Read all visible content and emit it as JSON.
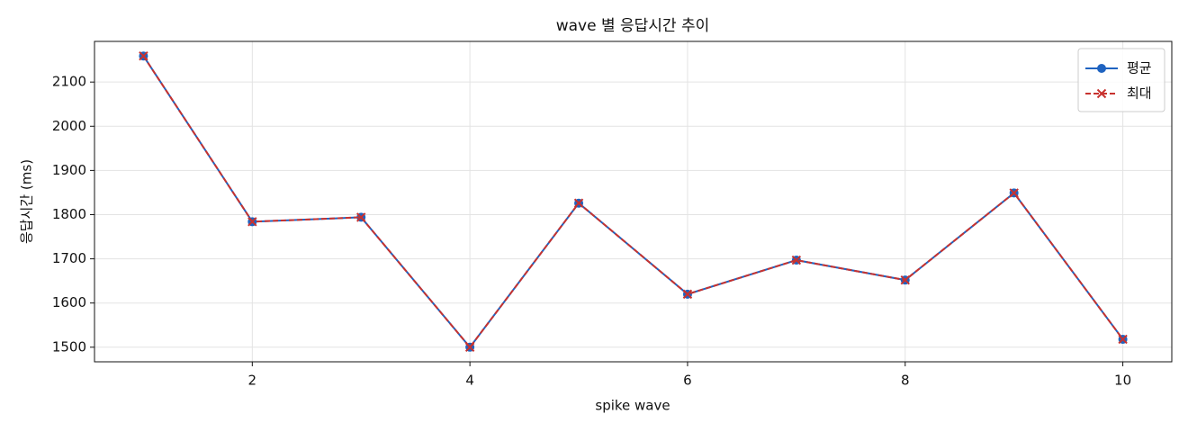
{
  "chart_data": {
    "type": "line",
    "title": "wave 별 응답시간 추이",
    "x_label": "spike wave",
    "y_label": "응답시간 (ms)",
    "x": [
      1,
      2,
      3,
      4,
      5,
      6,
      7,
      8,
      9,
      10
    ],
    "series": [
      {
        "name": "평균",
        "color": "#1f63c0",
        "marker": "circle",
        "dash": "solid",
        "values": [
          2159,
          1784,
          1794,
          1500,
          1826,
          1620,
          1697,
          1652,
          1849,
          1518
        ]
      },
      {
        "name": "최대",
        "color": "#c8322f",
        "marker": "x",
        "dash": "dashed",
        "values": [
          2159,
          1784,
          1794,
          1500,
          1826,
          1620,
          1697,
          1652,
          1849,
          1518
        ]
      }
    ],
    "xlim": [
      0.55,
      10.45
    ],
    "xticks": [
      2,
      4,
      6,
      8,
      10
    ],
    "ylim": [
      1467,
      2192
    ],
    "yticks": [
      1500,
      1600,
      1700,
      1800,
      1900,
      2000,
      2100
    ],
    "grid": true,
    "legend": "upper-right"
  }
}
